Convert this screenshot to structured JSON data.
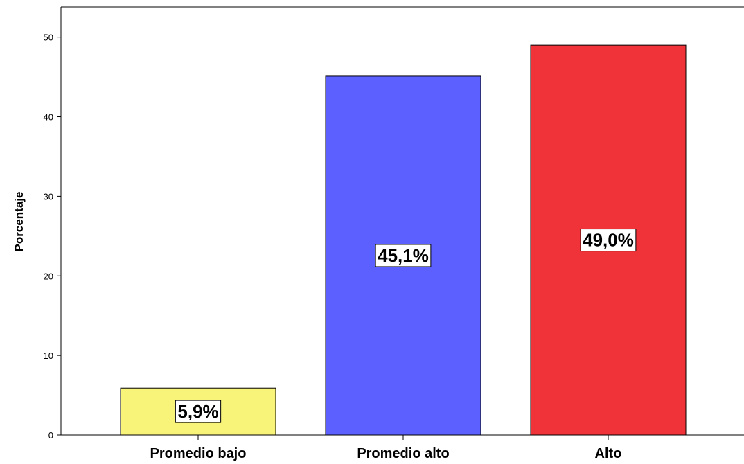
{
  "chart_data": {
    "type": "bar",
    "categories": [
      "Promedio bajo",
      "Promedio alto",
      "Alto"
    ],
    "values": [
      5.9,
      45.1,
      49.0
    ],
    "data_labels": [
      "5,9%",
      "45,1%",
      "49,0%"
    ],
    "colors": [
      "#f8f47a",
      "#5b60ff",
      "#ef3338"
    ],
    "xlabel": "",
    "ylabel": "Porcentaje",
    "ylim": [
      0,
      53.8
    ],
    "yticks": [
      0,
      10,
      20,
      30,
      40,
      50
    ],
    "grid": false,
    "legend": "none"
  }
}
